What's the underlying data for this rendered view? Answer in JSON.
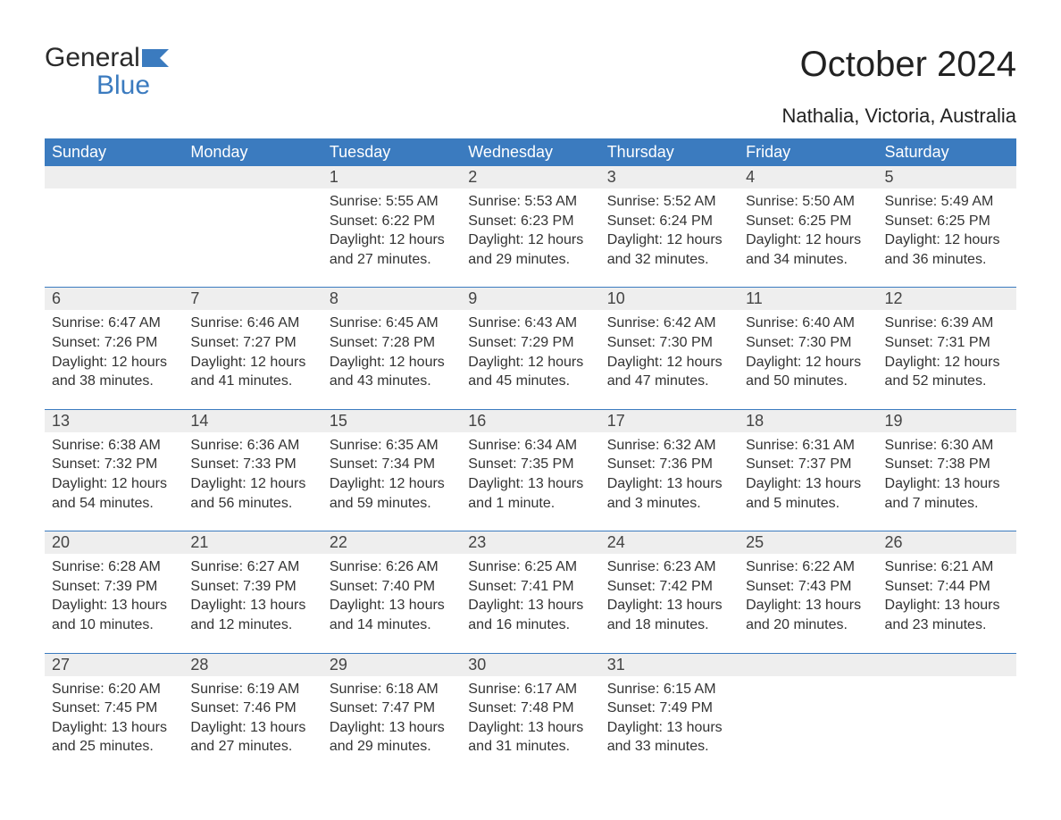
{
  "brand": {
    "name_part1": "General",
    "name_part2": "Blue",
    "color_dark": "#2a2a2a",
    "color_blue": "#3b7bbf"
  },
  "title": "October 2024",
  "location": "Nathalia, Victoria, Australia",
  "colors": {
    "header_bg": "#3b7bbf",
    "header_text": "#ffffff",
    "daynum_bg": "#eeeeee",
    "row_border": "#3b7bbf",
    "body_text": "#333333",
    "page_bg": "#ffffff"
  },
  "fonts": {
    "title_size_pt": 30,
    "location_size_pt": 17,
    "header_size_pt": 14,
    "daynum_size_pt": 14,
    "detail_size_pt": 12
  },
  "weekdays": [
    "Sunday",
    "Monday",
    "Tuesday",
    "Wednesday",
    "Thursday",
    "Friday",
    "Saturday"
  ],
  "weeks": [
    [
      {
        "day": "",
        "sunrise": "",
        "sunset": "",
        "daylight": ""
      },
      {
        "day": "",
        "sunrise": "",
        "sunset": "",
        "daylight": ""
      },
      {
        "day": "1",
        "sunrise": "Sunrise: 5:55 AM",
        "sunset": "Sunset: 6:22 PM",
        "daylight": "Daylight: 12 hours and 27 minutes."
      },
      {
        "day": "2",
        "sunrise": "Sunrise: 5:53 AM",
        "sunset": "Sunset: 6:23 PM",
        "daylight": "Daylight: 12 hours and 29 minutes."
      },
      {
        "day": "3",
        "sunrise": "Sunrise: 5:52 AM",
        "sunset": "Sunset: 6:24 PM",
        "daylight": "Daylight: 12 hours and 32 minutes."
      },
      {
        "day": "4",
        "sunrise": "Sunrise: 5:50 AM",
        "sunset": "Sunset: 6:25 PM",
        "daylight": "Daylight: 12 hours and 34 minutes."
      },
      {
        "day": "5",
        "sunrise": "Sunrise: 5:49 AM",
        "sunset": "Sunset: 6:25 PM",
        "daylight": "Daylight: 12 hours and 36 minutes."
      }
    ],
    [
      {
        "day": "6",
        "sunrise": "Sunrise: 6:47 AM",
        "sunset": "Sunset: 7:26 PM",
        "daylight": "Daylight: 12 hours and 38 minutes."
      },
      {
        "day": "7",
        "sunrise": "Sunrise: 6:46 AM",
        "sunset": "Sunset: 7:27 PM",
        "daylight": "Daylight: 12 hours and 41 minutes."
      },
      {
        "day": "8",
        "sunrise": "Sunrise: 6:45 AM",
        "sunset": "Sunset: 7:28 PM",
        "daylight": "Daylight: 12 hours and 43 minutes."
      },
      {
        "day": "9",
        "sunrise": "Sunrise: 6:43 AM",
        "sunset": "Sunset: 7:29 PM",
        "daylight": "Daylight: 12 hours and 45 minutes."
      },
      {
        "day": "10",
        "sunrise": "Sunrise: 6:42 AM",
        "sunset": "Sunset: 7:30 PM",
        "daylight": "Daylight: 12 hours and 47 minutes."
      },
      {
        "day": "11",
        "sunrise": "Sunrise: 6:40 AM",
        "sunset": "Sunset: 7:30 PM",
        "daylight": "Daylight: 12 hours and 50 minutes."
      },
      {
        "day": "12",
        "sunrise": "Sunrise: 6:39 AM",
        "sunset": "Sunset: 7:31 PM",
        "daylight": "Daylight: 12 hours and 52 minutes."
      }
    ],
    [
      {
        "day": "13",
        "sunrise": "Sunrise: 6:38 AM",
        "sunset": "Sunset: 7:32 PM",
        "daylight": "Daylight: 12 hours and 54 minutes."
      },
      {
        "day": "14",
        "sunrise": "Sunrise: 6:36 AM",
        "sunset": "Sunset: 7:33 PM",
        "daylight": "Daylight: 12 hours and 56 minutes."
      },
      {
        "day": "15",
        "sunrise": "Sunrise: 6:35 AM",
        "sunset": "Sunset: 7:34 PM",
        "daylight": "Daylight: 12 hours and 59 minutes."
      },
      {
        "day": "16",
        "sunrise": "Sunrise: 6:34 AM",
        "sunset": "Sunset: 7:35 PM",
        "daylight": "Daylight: 13 hours and 1 minute."
      },
      {
        "day": "17",
        "sunrise": "Sunrise: 6:32 AM",
        "sunset": "Sunset: 7:36 PM",
        "daylight": "Daylight: 13 hours and 3 minutes."
      },
      {
        "day": "18",
        "sunrise": "Sunrise: 6:31 AM",
        "sunset": "Sunset: 7:37 PM",
        "daylight": "Daylight: 13 hours and 5 minutes."
      },
      {
        "day": "19",
        "sunrise": "Sunrise: 6:30 AM",
        "sunset": "Sunset: 7:38 PM",
        "daylight": "Daylight: 13 hours and 7 minutes."
      }
    ],
    [
      {
        "day": "20",
        "sunrise": "Sunrise: 6:28 AM",
        "sunset": "Sunset: 7:39 PM",
        "daylight": "Daylight: 13 hours and 10 minutes."
      },
      {
        "day": "21",
        "sunrise": "Sunrise: 6:27 AM",
        "sunset": "Sunset: 7:39 PM",
        "daylight": "Daylight: 13 hours and 12 minutes."
      },
      {
        "day": "22",
        "sunrise": "Sunrise: 6:26 AM",
        "sunset": "Sunset: 7:40 PM",
        "daylight": "Daylight: 13 hours and 14 minutes."
      },
      {
        "day": "23",
        "sunrise": "Sunrise: 6:25 AM",
        "sunset": "Sunset: 7:41 PM",
        "daylight": "Daylight: 13 hours and 16 minutes."
      },
      {
        "day": "24",
        "sunrise": "Sunrise: 6:23 AM",
        "sunset": "Sunset: 7:42 PM",
        "daylight": "Daylight: 13 hours and 18 minutes."
      },
      {
        "day": "25",
        "sunrise": "Sunrise: 6:22 AM",
        "sunset": "Sunset: 7:43 PM",
        "daylight": "Daylight: 13 hours and 20 minutes."
      },
      {
        "day": "26",
        "sunrise": "Sunrise: 6:21 AM",
        "sunset": "Sunset: 7:44 PM",
        "daylight": "Daylight: 13 hours and 23 minutes."
      }
    ],
    [
      {
        "day": "27",
        "sunrise": "Sunrise: 6:20 AM",
        "sunset": "Sunset: 7:45 PM",
        "daylight": "Daylight: 13 hours and 25 minutes."
      },
      {
        "day": "28",
        "sunrise": "Sunrise: 6:19 AM",
        "sunset": "Sunset: 7:46 PM",
        "daylight": "Daylight: 13 hours and 27 minutes."
      },
      {
        "day": "29",
        "sunrise": "Sunrise: 6:18 AM",
        "sunset": "Sunset: 7:47 PM",
        "daylight": "Daylight: 13 hours and 29 minutes."
      },
      {
        "day": "30",
        "sunrise": "Sunrise: 6:17 AM",
        "sunset": "Sunset: 7:48 PM",
        "daylight": "Daylight: 13 hours and 31 minutes."
      },
      {
        "day": "31",
        "sunrise": "Sunrise: 6:15 AM",
        "sunset": "Sunset: 7:49 PM",
        "daylight": "Daylight: 13 hours and 33 minutes."
      },
      {
        "day": "",
        "sunrise": "",
        "sunset": "",
        "daylight": ""
      },
      {
        "day": "",
        "sunrise": "",
        "sunset": "",
        "daylight": ""
      }
    ]
  ]
}
